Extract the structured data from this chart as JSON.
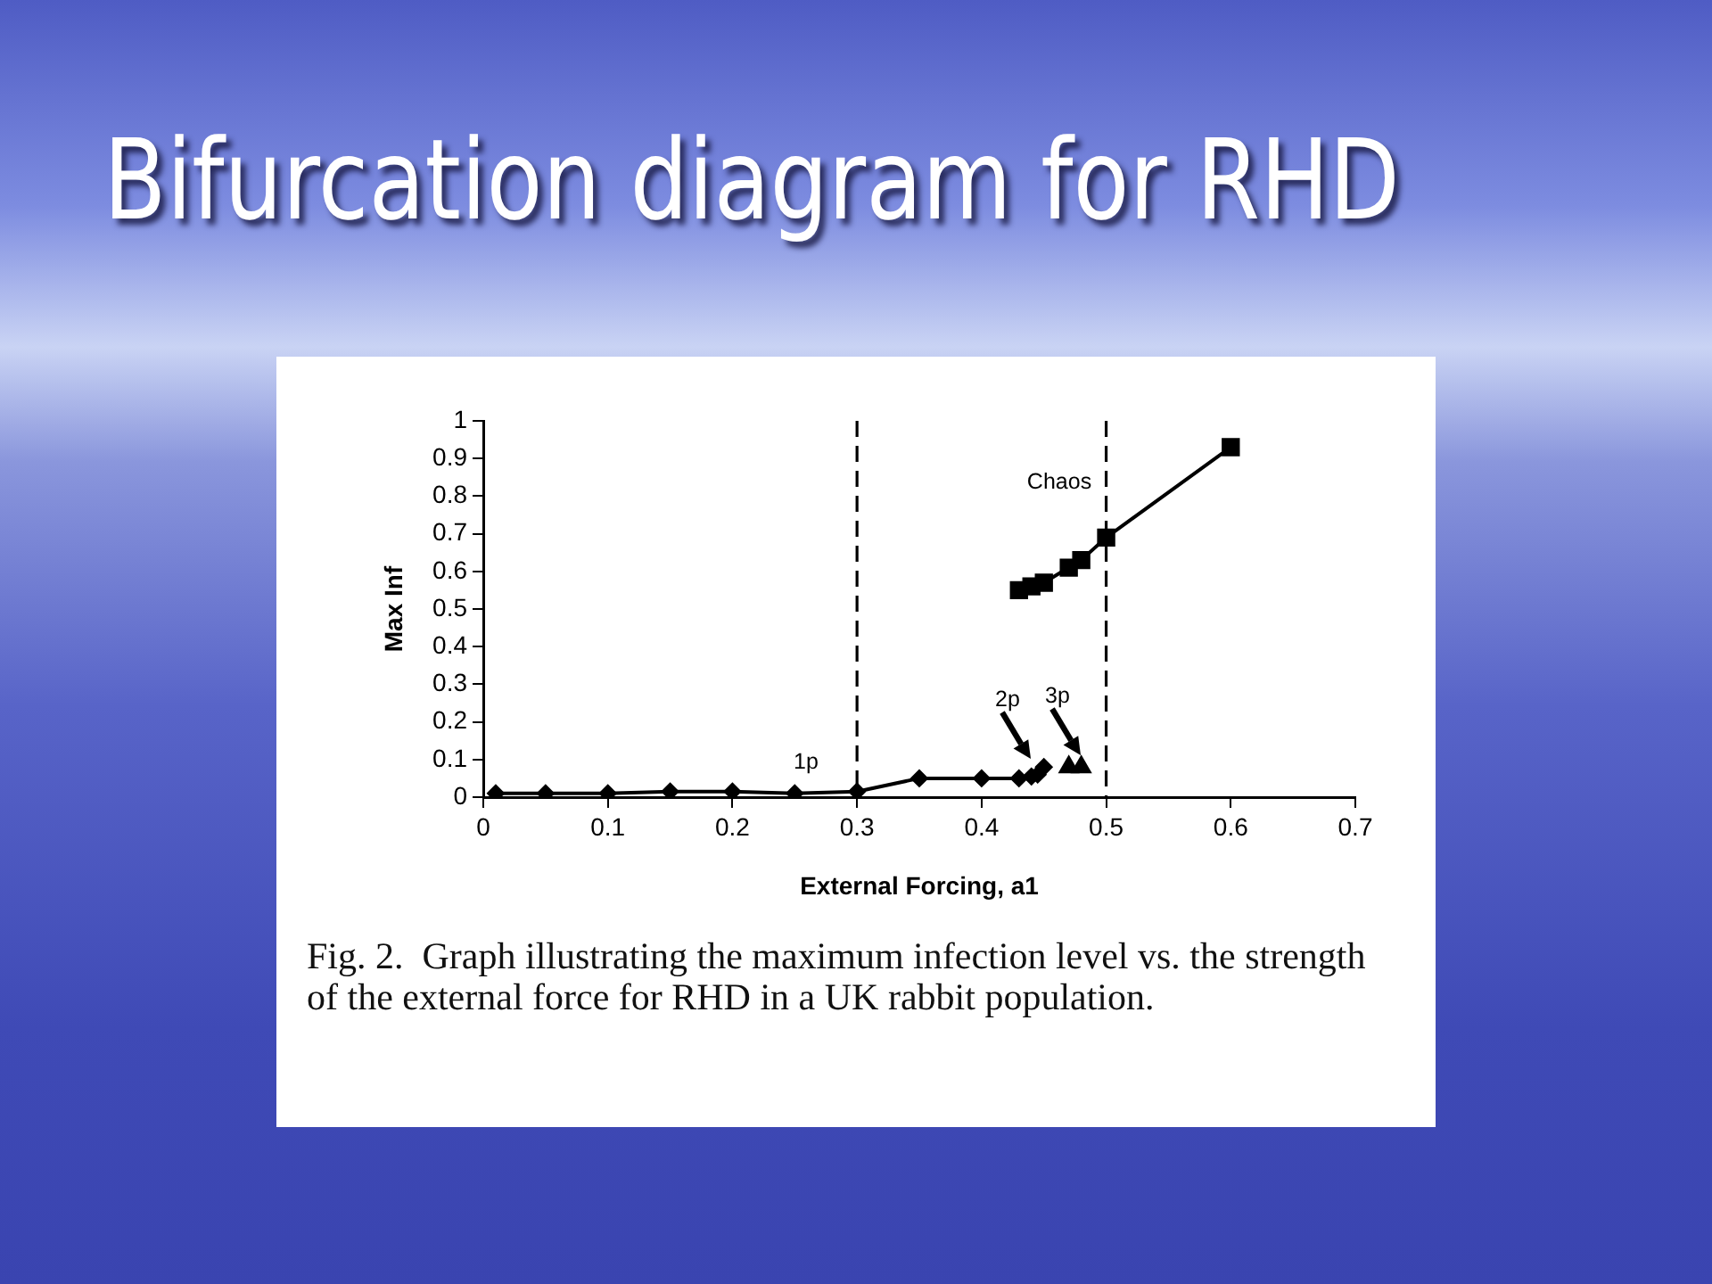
{
  "chart_data": {
    "type": "line",
    "title": "Bifurcation diagram for RHD",
    "xlabel": "External Forcing, a1",
    "ylabel": "Max Inf",
    "series": [
      {
        "color": "#000000",
        "marker": "diamond",
        "x": [
          0.01,
          0.05,
          0.1,
          0.15,
          0.2,
          0.25,
          0.3,
          0.35,
          0.4,
          0.43,
          0.44,
          0.445,
          0.45
        ],
        "values": [
          0.01,
          0.01,
          0.01,
          0.015,
          0.015,
          0.01,
          0.015,
          0.05,
          0.05,
          0.05,
          0.055,
          0.06,
          0.08
        ]
      },
      {
        "type": "scatter",
        "color": "#000000",
        "marker": "triangle",
        "x": [
          0.47,
          0.48
        ],
        "values": [
          0.08,
          0.08
        ]
      },
      {
        "color": "#000000",
        "marker": "square",
        "x": [
          0.43,
          0.44,
          0.45,
          0.47,
          0.48,
          0.5,
          0.6
        ],
        "values": [
          0.55,
          0.56,
          0.57,
          0.61,
          0.63,
          0.69,
          0.93
        ]
      }
    ],
    "xlim": [
      0,
      0.7
    ],
    "xticks": [
      0,
      0.1,
      0.2,
      0.3,
      0.4,
      0.5,
      0.6,
      0.7
    ],
    "ylim": [
      0,
      1
    ],
    "yticks": [
      0,
      0.1,
      0.2,
      0.3,
      0.4,
      0.5,
      0.6,
      0.7,
      0.8,
      0.9,
      1
    ],
    "ref_lines": [
      {
        "axis": "x",
        "value": 0.3,
        "color": "#000000",
        "line_style": "dashed"
      },
      {
        "axis": "x",
        "value": 0.5,
        "color": "#000000",
        "line_style": "dashed"
      }
    ],
    "annotations": [
      "1p",
      "2p",
      "3p",
      "Chaos",
      "Fig. 2.  Graph illustrating the maximum infection level vs. the strength of the external force for RHD in a UK rabbit population."
    ]
  }
}
